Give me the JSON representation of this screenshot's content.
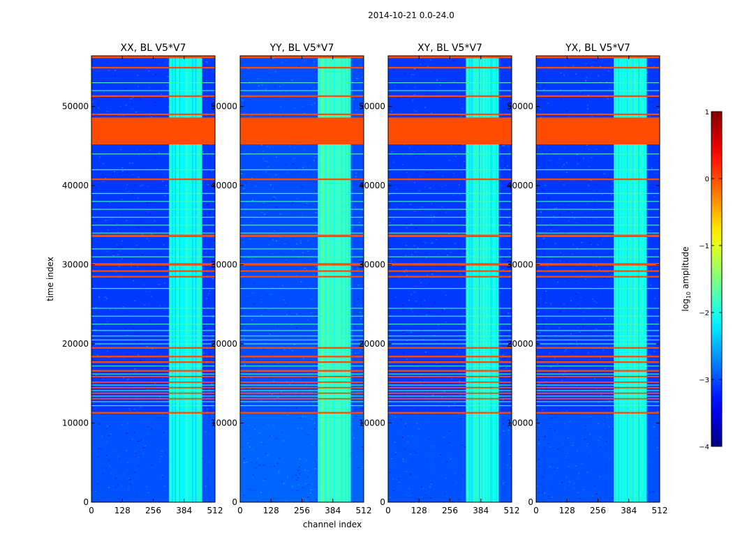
{
  "chart_data": {
    "type": "heatmap",
    "suptitle": "2014-10-21 0.0-24.0",
    "xlabel": "channel index",
    "ylabel": "time index",
    "xlim": [
      0,
      512
    ],
    "ylim": [
      0,
      56400
    ],
    "xticks": [
      0,
      128,
      256,
      384,
      512
    ],
    "yticks": [
      0,
      10000,
      20000,
      30000,
      40000,
      50000
    ],
    "panels": [
      {
        "title": "XX, BL V5*V7",
        "base_log_amp": -3.1,
        "band_log_amp": -2.0
      },
      {
        "title": "YY, BL V5*V7",
        "base_log_amp": -3.0,
        "band_log_amp": -1.7
      },
      {
        "title": "XY, BL V5*V7",
        "base_log_amp": -3.1,
        "band_log_amp": -1.9
      },
      {
        "title": "YX, BL V5*V7",
        "base_log_amp": -3.1,
        "band_log_amp": -1.9
      }
    ],
    "rfi_channel_range": [
      322,
      458
    ],
    "flagged_value_log_amp": 0,
    "flagged_time_ranges": [
      [
        45200,
        48600
      ],
      [
        56100,
        56400
      ],
      [
        54800,
        55000
      ],
      [
        51200,
        51400
      ],
      [
        48900,
        49100
      ],
      [
        40700,
        40900
      ],
      [
        33500,
        33800
      ],
      [
        29900,
        30200
      ],
      [
        29100,
        29300
      ],
      [
        28400,
        28600
      ],
      [
        19400,
        19600
      ],
      [
        18300,
        18500
      ],
      [
        17600,
        17800
      ],
      [
        16500,
        16700
      ],
      [
        15800,
        15950
      ],
      [
        15100,
        15250
      ],
      [
        14400,
        14550
      ],
      [
        13700,
        13850
      ],
      [
        13000,
        13150
      ],
      [
        11200,
        11400
      ]
    ],
    "thin_flag_rows": [
      53000,
      52000,
      44000,
      42000,
      39000,
      38000,
      37000,
      36000,
      35000,
      34000,
      32000,
      31000,
      27000,
      24500,
      23500,
      22500,
      21700,
      21000,
      20500,
      20000,
      17200,
      16200,
      14800,
      14100,
      13400,
      12700,
      12200
    ],
    "colorbar": {
      "label": "log10 amplitude",
      "label_base": "log",
      "label_sub": "10",
      "label_rest": " amplitude",
      "range": [
        -4,
        1
      ],
      "ticks": [
        "1",
        "0",
        "−1",
        "−2",
        "−3",
        "−4"
      ],
      "tick_values": [
        1,
        0,
        -1,
        -2,
        -3,
        -4
      ],
      "colormap": "jet"
    }
  }
}
